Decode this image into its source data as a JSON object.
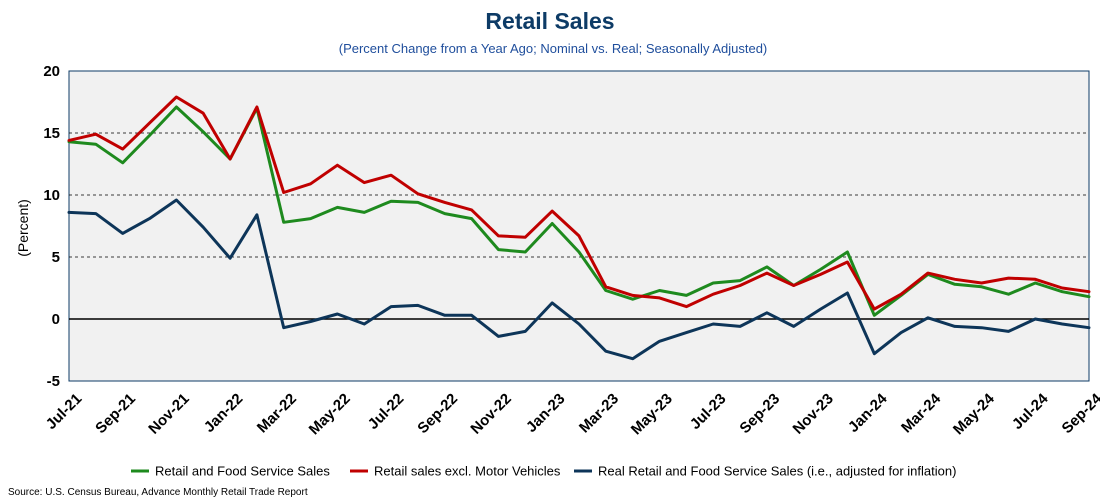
{
  "chart_data": {
    "type": "line",
    "title": "Retail Sales",
    "subtitle": "(Percent Change from a Year Ago; Nominal vs. Real; Seasonally Adjusted)",
    "ylabel": "(Percent)",
    "xlabel": "",
    "ylim": [
      -5,
      20
    ],
    "yticks": [
      20,
      15,
      10,
      5,
      0,
      -5
    ],
    "grid": "horizontal dashed at 5, 10, 15",
    "legend_position": "bottom",
    "source": "Source: U.S. Census Bureau, Advance Monthly Retail Trade Report",
    "x": [
      "Jul-21",
      "Aug-21",
      "Sep-21",
      "Oct-21",
      "Nov-21",
      "Dec-21",
      "Jan-22",
      "Feb-22",
      "Mar-22",
      "Apr-22",
      "May-22",
      "Jun-22",
      "Jul-22",
      "Aug-22",
      "Sep-22",
      "Oct-22",
      "Nov-22",
      "Dec-22",
      "Jan-23",
      "Feb-23",
      "Mar-23",
      "Apr-23",
      "May-23",
      "Jun-23",
      "Jul-23",
      "Aug-23",
      "Sep-23",
      "Oct-23",
      "Nov-23",
      "Dec-23",
      "Jan-24",
      "Feb-24",
      "Mar-24",
      "Apr-24",
      "May-24",
      "Jun-24",
      "Jul-24",
      "Aug-24",
      "Sep-24"
    ],
    "tick_labels": [
      "Jul-21",
      "Sep-21",
      "Nov-21",
      "Jan-22",
      "Mar-22",
      "May-22",
      "Jul-22",
      "Sep-22",
      "Nov-22",
      "Jan-23",
      "Mar-23",
      "May-23",
      "Jul-23",
      "Sep-23",
      "Nov-23",
      "Jan-24",
      "Mar-24",
      "May-24",
      "Jul-24",
      "Sep-24"
    ],
    "series": [
      {
        "name": "Retail and Food Service Sales",
        "color": "#1e8a1e",
        "values": [
          14.3,
          14.1,
          12.6,
          14.8,
          17.1,
          15.1,
          12.9,
          17.0,
          7.8,
          8.1,
          9.0,
          8.6,
          9.5,
          9.4,
          8.5,
          8.1,
          5.6,
          5.4,
          7.7,
          5.4,
          2.3,
          1.6,
          2.3,
          1.9,
          2.9,
          3.1,
          4.2,
          2.7,
          4.0,
          5.4,
          0.3,
          1.9,
          3.6,
          2.8,
          2.6,
          2.0,
          2.9,
          2.2,
          1.8
        ]
      },
      {
        "name": "Retail sales excl. Motor Vehicles",
        "color": "#c00000",
        "values": [
          14.4,
          14.9,
          13.7,
          15.8,
          17.9,
          16.6,
          12.9,
          17.1,
          10.2,
          10.9,
          12.4,
          11.0,
          11.6,
          10.1,
          9.4,
          8.8,
          6.7,
          6.6,
          8.7,
          6.7,
          2.6,
          1.9,
          1.7,
          1.0,
          2.0,
          2.7,
          3.7,
          2.7,
          3.6,
          4.6,
          0.8,
          2.0,
          3.7,
          3.2,
          2.9,
          3.3,
          3.2,
          2.5,
          2.2
        ]
      },
      {
        "name": "Real Retail and Food Service Sales (i.e., adjusted for inflation)",
        "color": "#0d3559",
        "values": [
          8.6,
          8.5,
          6.9,
          8.1,
          9.6,
          7.4,
          4.9,
          8.4,
          -0.7,
          -0.2,
          0.4,
          -0.4,
          1.0,
          1.1,
          0.3,
          0.3,
          -1.4,
          -1.0,
          1.3,
          -0.4,
          -2.6,
          -3.2,
          -1.8,
          -1.1,
          -0.4,
          -0.6,
          0.5,
          -0.6,
          0.8,
          2.1,
          -2.8,
          -1.1,
          0.1,
          -0.6,
          -0.7,
          -1.0,
          0.0,
          -0.4,
          -0.7
        ]
      }
    ]
  }
}
